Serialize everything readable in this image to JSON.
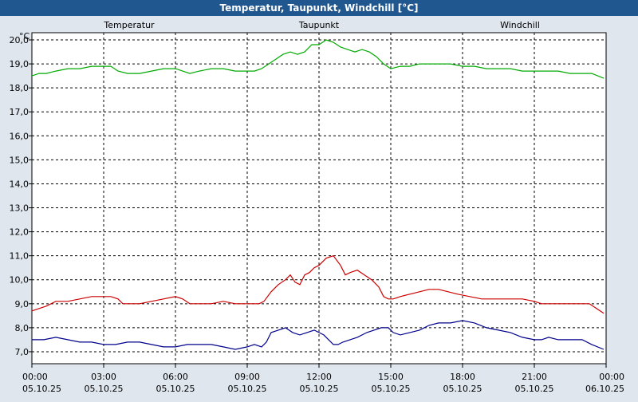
{
  "window": {
    "title": "Temperatur, Taupunkt, Windchill [°C]"
  },
  "chart_data": {
    "type": "line",
    "title": "Temperatur, Taupunkt, Windchill [°C]",
    "ylabel": "°C",
    "ylim": [
      6.5,
      20.3
    ],
    "yticks": [
      7.0,
      8.0,
      9.0,
      10.0,
      11.0,
      12.0,
      13.0,
      14.0,
      15.0,
      16.0,
      17.0,
      18.0,
      19.0,
      20.0
    ],
    "ytick_labels": [
      "7,0",
      "8,0",
      "9,0",
      "10,0",
      "11,0",
      "12,0",
      "13,0",
      "14,0",
      "15,0",
      "16,0",
      "17,0",
      "18,0",
      "19,0",
      "20,0"
    ],
    "xlim": [
      0,
      24
    ],
    "xticks": [
      0,
      3,
      6,
      9,
      12,
      15,
      18,
      21,
      24
    ],
    "xtick_time_labels": [
      "00:00",
      "03:00",
      "06:00",
      "09:00",
      "12:00",
      "15:00",
      "18:00",
      "21:00",
      "00:00"
    ],
    "xtick_date_labels": [
      "05.10.25",
      "05.10.25",
      "05.10.25",
      "05.10.25",
      "05.10.25",
      "05.10.25",
      "05.10.25",
      "05.10.25",
      "06.10.25"
    ],
    "grid": true,
    "series": [
      {
        "name": "Temperatur",
        "color": "#cc0000",
        "x": [
          0,
          0.3,
          0.6,
          1.0,
          1.5,
          2.0,
          2.5,
          3.0,
          3.3,
          3.6,
          3.8,
          4.0,
          4.5,
          5.0,
          5.5,
          6.0,
          6.3,
          6.6,
          7.0,
          7.5,
          8.0,
          8.5,
          9.0,
          9.3,
          9.5,
          9.7,
          10.0,
          10.3,
          10.6,
          10.8,
          11.0,
          11.2,
          11.4,
          11.6,
          11.8,
          12.0,
          12.3,
          12.6,
          12.9,
          13.1,
          13.3,
          13.6,
          13.9,
          14.2,
          14.5,
          14.7,
          14.9,
          15.1,
          15.4,
          15.8,
          16.2,
          16.6,
          17.0,
          17.4,
          17.8,
          18.3,
          18.8,
          19.5,
          20.0,
          20.5,
          21.0,
          21.3,
          21.7,
          22.0,
          22.5,
          23.0,
          23.3,
          23.6,
          23.9
        ],
        "y": [
          8.7,
          8.8,
          8.9,
          9.1,
          9.1,
          9.2,
          9.3,
          9.3,
          9.3,
          9.2,
          9.0,
          9.0,
          9.0,
          9.1,
          9.2,
          9.3,
          9.2,
          9.0,
          9.0,
          9.0,
          9.1,
          9.0,
          9.0,
          9.0,
          9.0,
          9.1,
          9.5,
          9.8,
          10.0,
          10.2,
          9.9,
          9.8,
          10.2,
          10.3,
          10.5,
          10.6,
          10.9,
          11.0,
          10.6,
          10.2,
          10.3,
          10.4,
          10.2,
          10.0,
          9.7,
          9.3,
          9.2,
          9.2,
          9.3,
          9.4,
          9.5,
          9.6,
          9.6,
          9.5,
          9.4,
          9.3,
          9.2,
          9.2,
          9.2,
          9.2,
          9.1,
          9.0,
          9.0,
          9.0,
          9.0,
          9.0,
          9.0,
          8.8,
          8.6
        ]
      },
      {
        "name": "Taupunkt",
        "color": "#00008b",
        "x": [
          0,
          0.5,
          1.0,
          1.5,
          2.0,
          2.5,
          3.0,
          3.5,
          4.0,
          4.5,
          5.0,
          5.5,
          6.0,
          6.5,
          7.0,
          7.5,
          8.0,
          8.5,
          9.0,
          9.3,
          9.6,
          9.8,
          10.0,
          10.3,
          10.6,
          10.9,
          11.2,
          11.5,
          11.8,
          12.0,
          12.2,
          12.4,
          12.6,
          12.8,
          13.0,
          13.3,
          13.6,
          14.0,
          14.3,
          14.6,
          14.9,
          15.1,
          15.4,
          15.8,
          16.2,
          16.6,
          17.0,
          17.5,
          18.0,
          18.5,
          19.0,
          19.5,
          20.0,
          20.5,
          21.0,
          21.3,
          21.6,
          22.0,
          22.5,
          23.0,
          23.4,
          23.9
        ],
        "y": [
          7.5,
          7.5,
          7.6,
          7.5,
          7.4,
          7.4,
          7.3,
          7.3,
          7.4,
          7.4,
          7.3,
          7.2,
          7.2,
          7.3,
          7.3,
          7.3,
          7.2,
          7.1,
          7.2,
          7.3,
          7.2,
          7.4,
          7.8,
          7.9,
          8.0,
          7.8,
          7.7,
          7.8,
          7.9,
          7.8,
          7.7,
          7.5,
          7.3,
          7.3,
          7.4,
          7.5,
          7.6,
          7.8,
          7.9,
          8.0,
          8.0,
          7.8,
          7.7,
          7.8,
          7.9,
          8.1,
          8.2,
          8.2,
          8.3,
          8.2,
          8.0,
          7.9,
          7.8,
          7.6,
          7.5,
          7.5,
          7.6,
          7.5,
          7.5,
          7.5,
          7.3,
          7.1
        ]
      },
      {
        "name": "Windchill",
        "color": "#00aa00",
        "x": [
          0,
          0.3,
          0.6,
          1.0,
          1.5,
          2.0,
          2.5,
          3.0,
          3.3,
          3.6,
          4.0,
          4.5,
          5.0,
          5.5,
          6.0,
          6.3,
          6.6,
          7.0,
          7.5,
          8.0,
          8.5,
          9.0,
          9.3,
          9.6,
          9.9,
          10.2,
          10.5,
          10.8,
          11.1,
          11.4,
          11.7,
          12.0,
          12.3,
          12.6,
          12.9,
          13.2,
          13.5,
          13.8,
          14.1,
          14.4,
          14.7,
          15.0,
          15.4,
          15.8,
          16.2,
          16.6,
          17.0,
          17.5,
          18.0,
          18.5,
          19.0,
          19.5,
          20.0,
          20.5,
          21.0,
          21.3,
          21.7,
          22.0,
          22.5,
          23.0,
          23.4,
          23.9
        ],
        "y": [
          18.5,
          18.6,
          18.6,
          18.7,
          18.8,
          18.8,
          18.9,
          18.9,
          18.9,
          18.7,
          18.6,
          18.6,
          18.7,
          18.8,
          18.8,
          18.7,
          18.6,
          18.7,
          18.8,
          18.8,
          18.7,
          18.7,
          18.7,
          18.8,
          19.0,
          19.2,
          19.4,
          19.5,
          19.4,
          19.5,
          19.8,
          19.8,
          20.0,
          19.9,
          19.7,
          19.6,
          19.5,
          19.6,
          19.5,
          19.3,
          19.0,
          18.8,
          18.9,
          18.9,
          19.0,
          19.0,
          19.0,
          19.0,
          18.9,
          18.9,
          18.8,
          18.8,
          18.8,
          18.7,
          18.7,
          18.7,
          18.7,
          18.7,
          18.6,
          18.6,
          18.6,
          18.4
        ]
      }
    ]
  }
}
